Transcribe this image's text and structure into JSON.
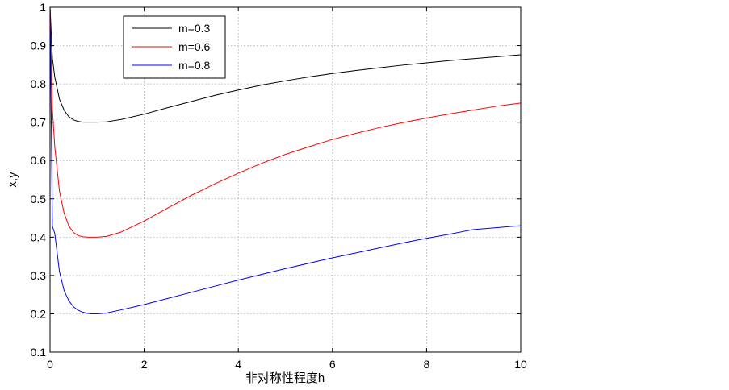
{
  "chart_data": {
    "type": "line",
    "title": "",
    "xlabel": "非对称性程度h",
    "ylabel": "x,y",
    "xlim": [
      0,
      10
    ],
    "ylim": [
      0.1,
      1
    ],
    "xticks": [
      0,
      2,
      4,
      6,
      8,
      10
    ],
    "yticks": [
      0.1,
      0.2,
      0.3,
      0.4,
      0.5,
      0.6,
      0.7,
      0.8,
      0.9,
      1
    ],
    "xtick_labels": [
      "0",
      "2",
      "4",
      "6",
      "8",
      "10"
    ],
    "ytick_labels": [
      "0.1",
      "0.2",
      "0.3",
      "0.4",
      "0.5",
      "0.6",
      "0.7",
      "0.8",
      "0.9",
      "1"
    ],
    "grid": true,
    "grid_style": "dotted",
    "legend_position": "top-left",
    "x": [
      0,
      0.05,
      0.1,
      0.2,
      0.3,
      0.4,
      0.5,
      0.6,
      0.7,
      0.8,
      0.9,
      1.0,
      1.2,
      1.5,
      2,
      2.5,
      3,
      3.5,
      4,
      4.5,
      5,
      5.5,
      6,
      6.5,
      7,
      7.5,
      8,
      8.5,
      9,
      9.5,
      10
    ],
    "series": [
      {
        "name": "m=0.3",
        "color": "#000000",
        "values": [
          1.0,
          0.867,
          0.818,
          0.76,
          0.731,
          0.714,
          0.706,
          0.702,
          0.7,
          0.7,
          0.7,
          0.7,
          0.701,
          0.707,
          0.721,
          0.738,
          0.754,
          0.77,
          0.784,
          0.797,
          0.808,
          0.818,
          0.827,
          0.835,
          0.842,
          0.849,
          0.855,
          0.861,
          0.866,
          0.871,
          0.876
        ]
      },
      {
        "name": "m=0.6",
        "color": "#ff0000",
        "values": [
          1.0,
          0.734,
          0.636,
          0.52,
          0.462,
          0.429,
          0.412,
          0.404,
          0.401,
          0.4,
          0.4,
          0.4,
          0.402,
          0.413,
          0.442,
          0.476,
          0.509,
          0.539,
          0.567,
          0.593,
          0.616,
          0.636,
          0.655,
          0.671,
          0.686,
          0.699,
          0.711,
          0.722,
          0.732,
          0.742,
          0.75
        ]
      },
      {
        "name": "m=0.8",
        "color": "#0000ff",
        "values": [
          1.0,
          0.428,
          0.41,
          0.31,
          0.26,
          0.234,
          0.218,
          0.209,
          0.204,
          0.201,
          0.2,
          0.2,
          0.202,
          0.21,
          0.224,
          0.24,
          0.256,
          0.272,
          0.288,
          0.303,
          0.318,
          0.332,
          0.346,
          0.359,
          0.372,
          0.385,
          0.397,
          0.408,
          0.42,
          0.425,
          0.43
        ]
      }
    ]
  }
}
